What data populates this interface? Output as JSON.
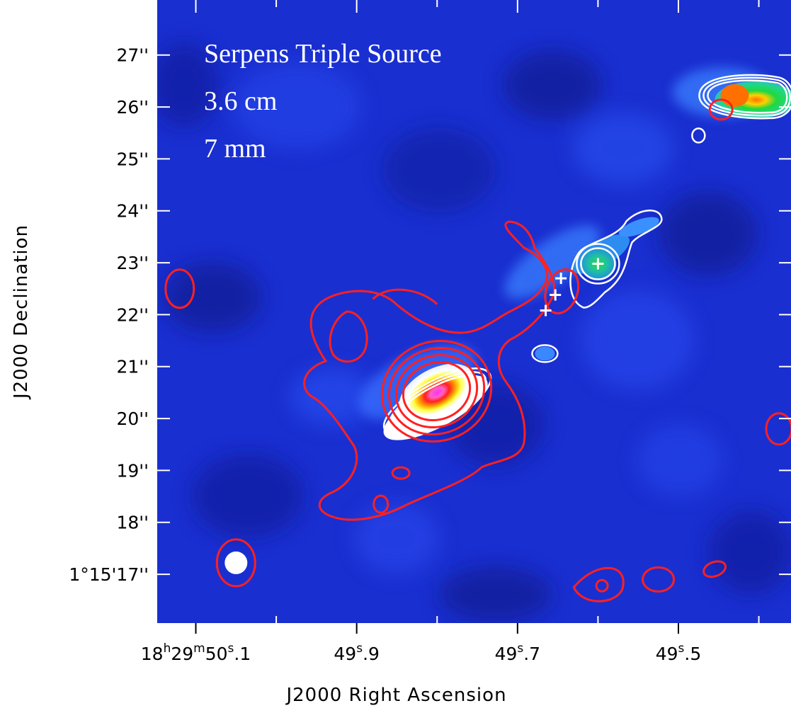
{
  "chart_data": {
    "type": "heatmap",
    "title_lines": [
      "Serpens Triple Source",
      "3.6 cm",
      "7 mm"
    ],
    "xlabel": "J2000 Right Ascension",
    "ylabel": "J2000 Declination",
    "xlim_sec": [
      50.148,
      49.36
    ],
    "ylim_arcsec": [
      16.06,
      28.06
    ],
    "x_ticks": [
      {
        "value": 50.1,
        "label_parts": [
          "18",
          "h",
          "29",
          "m",
          "50",
          "s",
          ".1"
        ]
      },
      {
        "value": 49.9,
        "label_parts": [
          "49",
          "s",
          ".9"
        ]
      },
      {
        "value": 49.7,
        "label_parts": [
          "49",
          "s",
          ".7"
        ]
      },
      {
        "value": 49.5,
        "label_parts": [
          "49",
          "s",
          ".5"
        ]
      }
    ],
    "x_minor_ticks": [
      50.0,
      49.8,
      49.6,
      49.4
    ],
    "y_ticks": [
      {
        "value": 27,
        "label": "27''"
      },
      {
        "value": 26,
        "label": "26''"
      },
      {
        "value": 25,
        "label": "25''"
      },
      {
        "value": 24,
        "label": "24''"
      },
      {
        "value": 23,
        "label": "23''"
      },
      {
        "value": 22,
        "label": "22''"
      },
      {
        "value": 21,
        "label": "21''"
      },
      {
        "value": 20,
        "label": "20''"
      },
      {
        "value": 19,
        "label": "19''"
      },
      {
        "value": 18,
        "label": "18''"
      },
      {
        "value": 17,
        "label": "1°15'17''"
      }
    ],
    "colors": {
      "background": "#1a2fd0",
      "contour_36cm": "#ff2020",
      "contour_7mm": "#ffffff",
      "cross": "#ffffff"
    },
    "sources": [
      {
        "id": "central",
        "ra": 49.8,
        "dec": 20.5,
        "peak": "magenta"
      },
      {
        "id": "middle",
        "ra": 49.6,
        "dec": 22.98,
        "peak": "green"
      },
      {
        "id": "northwest",
        "ra": 49.43,
        "dec": 26.22,
        "peak": "orange"
      }
    ],
    "crosses": [
      {
        "ra": 49.665,
        "dec": 22.08
      },
      {
        "ra": 49.653,
        "dec": 22.38
      },
      {
        "ra": 49.646,
        "dec": 22.7
      },
      {
        "ra": 49.6,
        "dec": 22.98
      }
    ],
    "beam": {
      "ra": 50.05,
      "dec": 17.22
    }
  }
}
